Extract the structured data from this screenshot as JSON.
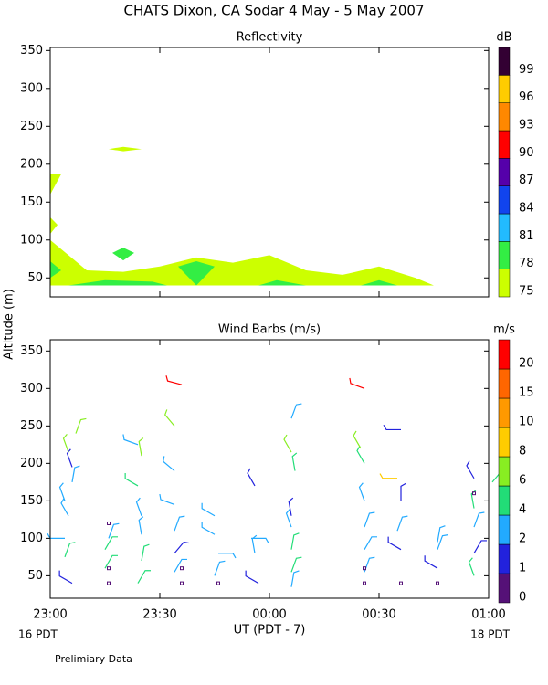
{
  "title": "CHATS Dixon, CA  Sodar    4 May -  5 May 2007",
  "y_label": "Altitude (m)",
  "footnote": "Prelimiary Data",
  "chart_data": [
    {
      "type": "filled_contour",
      "title": "Reflectivity",
      "xlim": [
        0,
        120
      ],
      "ylim": [
        25,
        354
      ],
      "yticks": [
        50,
        100,
        150,
        200,
        250,
        300,
        350
      ],
      "colorbar": {
        "label": "dB",
        "levels": [
          75,
          78,
          81,
          84,
          87,
          90,
          93,
          96,
          99
        ],
        "colors": [
          "#ccff00",
          "#33ee44",
          "#22bbff",
          "#1144ee",
          "#5500aa",
          "#ff0000",
          "#ff8800",
          "#ffcc00",
          "#330033"
        ]
      },
      "areas": [
        {
          "color": "#ccff00",
          "x": [
            0,
            0,
            10,
            20,
            30,
            40,
            50,
            60,
            70,
            80,
            90,
            100,
            105
          ],
          "y": [
            40,
            100,
            60,
            58,
            65,
            77,
            70,
            80,
            60,
            54,
            65,
            50,
            40
          ]
        },
        {
          "color": "#ccff00",
          "x": [
            0,
            0,
            3
          ],
          "y": [
            160,
            187,
            187
          ]
        },
        {
          "color": "#ccff00",
          "x": [
            0,
            0,
            2
          ],
          "y": [
            108,
            130,
            120
          ]
        },
        {
          "color": "#ccff00",
          "x": [
            16,
            20,
            25,
            20
          ],
          "y": [
            220,
            223,
            220,
            217
          ]
        },
        {
          "color": "#33ee44",
          "x": [
            0,
            0,
            3
          ],
          "y": [
            50,
            72,
            60
          ]
        },
        {
          "color": "#33ee44",
          "x": [
            5,
            15,
            28,
            32
          ],
          "y": [
            40,
            47,
            45,
            40
          ]
        },
        {
          "color": "#33ee44",
          "x": [
            17,
            20,
            23,
            20
          ],
          "y": [
            83,
            90,
            83,
            73
          ]
        },
        {
          "color": "#33ee44",
          "x": [
            35,
            40,
            45,
            40
          ],
          "y": [
            65,
            72,
            65,
            40
          ]
        },
        {
          "color": "#33ee44",
          "x": [
            57,
            62,
            70
          ],
          "y": [
            40,
            47,
            40
          ]
        },
        {
          "color": "#33ee44",
          "x": [
            85,
            90,
            95
          ],
          "y": [
            40,
            47,
            40
          ]
        }
      ]
    },
    {
      "type": "wind_barbs",
      "title": "Wind Barbs (m/s)",
      "xlabel": "UT  (PDT - 7)",
      "x_sublabels": [
        "16 PDT",
        "18 PDT"
      ],
      "xlim": [
        0,
        120
      ],
      "ylim": [
        20,
        365
      ],
      "yticks": [
        50,
        100,
        150,
        200,
        250,
        300,
        350
      ],
      "xticks": [
        {
          "value": 0,
          "label": "23:00"
        },
        {
          "value": 30,
          "label": "23:30"
        },
        {
          "value": 60,
          "label": "00:00"
        },
        {
          "value": 90,
          "label": "00:30"
        },
        {
          "value": 120,
          "label": "01:00"
        }
      ],
      "colorbar": {
        "label": "m/s",
        "levels": [
          0,
          1,
          2,
          4,
          6,
          8,
          10,
          15,
          20
        ],
        "colors": [
          "#551177",
          "#2222dd",
          "#22aaff",
          "#22dd77",
          "#88ee22",
          "#ffcc00",
          "#ff9900",
          "#ff6600",
          "#ff0000"
        ]
      },
      "barbs": {
        "x": [
          6,
          4,
          4,
          5,
          4,
          6,
          6,
          5,
          7,
          15,
          15,
          16,
          24,
          25,
          25,
          25,
          24,
          25,
          24,
          34,
          34,
          34,
          34,
          34,
          34,
          36,
          45,
          46,
          45,
          45,
          57,
          56,
          55,
          56,
          66,
          66,
          66,
          66,
          66,
          67,
          66,
          66,
          86,
          86,
          86,
          86,
          86,
          85,
          86,
          96,
          95,
          96,
          95,
          96,
          106,
          106,
          106,
          116,
          116,
          116,
          116,
          116,
          121
        ],
        "altitude": [
          40,
          75,
          100,
          130,
          150,
          175,
          195,
          215,
          240,
          60,
          85,
          100,
          40,
          70,
          105,
          130,
          170,
          210,
          225,
          55,
          80,
          110,
          145,
          190,
          250,
          305,
          50,
          80,
          105,
          130,
          40,
          80,
          100,
          170,
          35,
          55,
          85,
          115,
          130,
          190,
          215,
          260,
          55,
          85,
          115,
          150,
          200,
          220,
          300,
          85,
          110,
          150,
          180,
          245,
          60,
          85,
          95,
          50,
          80,
          115,
          140,
          180,
          175
        ],
        "speed": [
          1.5,
          5,
          3,
          3,
          3,
          3,
          1.5,
          7,
          7,
          5,
          5,
          3,
          5,
          5,
          3,
          3,
          5,
          7,
          3,
          3,
          1.5,
          3,
          3,
          3,
          6.5,
          22,
          3,
          3,
          3,
          3,
          1.5,
          3,
          3,
          1.5,
          3,
          5,
          5,
          3,
          1.5,
          5,
          7,
          3,
          3,
          3,
          3,
          3,
          5,
          7,
          22,
          1.5,
          3,
          1.5,
          9,
          1.5,
          1.5,
          3,
          3,
          5,
          1.5,
          3,
          5,
          1.5,
          5
        ],
        "direction": [
          300,
          20,
          270,
          330,
          340,
          10,
          340,
          340,
          20,
          30,
          30,
          20,
          30,
          10,
          350,
          340,
          300,
          350,
          290,
          30,
          40,
          20,
          290,
          310,
          320,
          285,
          20,
          90,
          300,
          300,
          300,
          350,
          90,
          330,
          10,
          20,
          10,
          340,
          350,
          350,
          330,
          20,
          20,
          30,
          20,
          340,
          330,
          330,
          290,
          300,
          20,
          0,
          270,
          270,
          300,
          20,
          10,
          340,
          30,
          20,
          350,
          330,
          40
        ]
      },
      "calm": {
        "x": [
          16,
          16,
          16,
          36,
          36,
          46,
          86,
          86,
          96,
          106,
          116
        ],
        "altitude": [
          120,
          60,
          40,
          60,
          40,
          40,
          60,
          40,
          40,
          40,
          160
        ],
        "color": "#551177"
      }
    }
  ]
}
